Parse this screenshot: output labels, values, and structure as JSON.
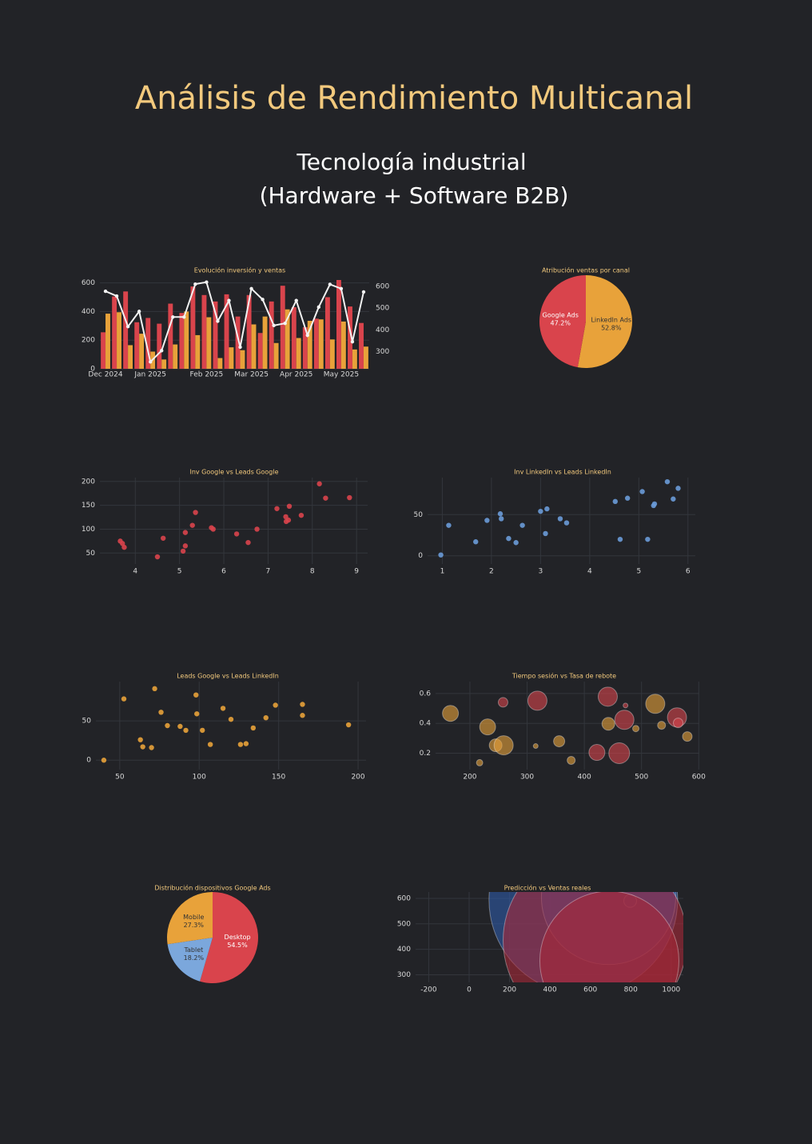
{
  "header": {
    "title": "Análisis de Rendimiento Multicanal",
    "subtitle": [
      "Tecnología industrial",
      "(Hardware + Software B2B)"
    ]
  },
  "chart_data": [
    {
      "type": "bar",
      "title": "Evolución inversión y ventas",
      "categories": [
        "Dec 2024",
        null,
        null,
        null,
        "Jan 2025",
        null,
        null,
        null,
        null,
        "Feb 2025",
        null,
        null,
        null,
        "Mar 2025",
        null,
        null,
        null,
        "Apr 2025",
        null,
        null,
        null,
        "May 2025",
        null,
        null
      ],
      "series": [
        {
          "color": "#d9444c",
          "values": [
            255,
            505,
            540,
            325,
            355,
            315,
            455,
            390,
            575,
            515,
            470,
            520,
            365,
            515,
            250,
            470,
            580,
            430,
            290,
            350,
            500,
            620,
            435,
            320
          ]
        },
        {
          "color": "#e8a23a",
          "values": [
            385,
            395,
            165,
            245,
            120,
            65,
            170,
            400,
            235,
            360,
            75,
            150,
            130,
            310,
            365,
            180,
            415,
            215,
            335,
            345,
            205,
            330,
            135,
            155
          ]
        },
        {
          "type": "line",
          "axis": "y2",
          "color": "#f2f2f2",
          "values": [
            578,
            556,
            415,
            485,
            252,
            304,
            459,
            459,
            611,
            620,
            440,
            535,
            320,
            590,
            540,
            420,
            430,
            535,
            375,
            505,
            610,
            590,
            345,
            575
          ]
        }
      ],
      "ylim": [
        0,
        620
      ],
      "yticks": [
        0,
        200,
        400,
        600
      ],
      "y2lim": [
        220,
        630
      ],
      "y2ticks": [
        300,
        400,
        500,
        600
      ],
      "grid": true
    },
    {
      "type": "pie",
      "title": "Atribución ventas por canal",
      "categories": [
        "LinkedIn Ads",
        "Google Ads"
      ],
      "values": [
        52.8,
        47.2
      ],
      "value_labels": [
        "52.8%",
        "47.2%"
      ],
      "colors": [
        "#e8a23a",
        "#d9444c"
      ],
      "label_colors": [
        "#333333",
        "#ffffff"
      ]
    },
    {
      "type": "scatter",
      "title": "Inv Google vs Leads Google",
      "color": "#d9444c",
      "x": [
        3.66,
        3.71,
        3.75,
        4.5,
        4.63,
        5.08,
        5.13,
        5.13,
        5.29,
        5.36,
        5.72,
        5.76,
        6.29,
        6.55,
        6.75,
        7.2,
        7.4,
        7.41,
        7.48,
        7.46,
        7.75,
        8.16,
        8.3,
        8.84
      ],
      "values": [
        75,
        70,
        62,
        42,
        81,
        54,
        65,
        93,
        108,
        135,
        103,
        100,
        90,
        72,
        100,
        143,
        126,
        116,
        148,
        119,
        129,
        195,
        165,
        166
      ],
      "xlim": [
        3.2,
        9.25
      ],
      "xticks": [
        4,
        5,
        6,
        7,
        8,
        9
      ],
      "ylim": [
        27,
        208
      ],
      "yticks": [
        50,
        100,
        150,
        200
      ],
      "grid": true
    },
    {
      "type": "scatter",
      "title": "Inv LinkedIn vs Leads LinkedIn",
      "color": "#6a9bd8",
      "x": [
        0.97,
        1.13,
        1.68,
        1.91,
        2.18,
        2.2,
        2.35,
        2.5,
        2.63,
        3.0,
        3.1,
        3.13,
        3.4,
        3.53,
        4.52,
        4.62,
        4.77,
        5.07,
        5.18,
        5.3,
        5.32,
        5.58,
        5.7,
        5.8
      ],
      "values": [
        1,
        37,
        17,
        43,
        51,
        45,
        21,
        16,
        37,
        54,
        27,
        57,
        45,
        40,
        66,
        20,
        70,
        78,
        20,
        61,
        63,
        90,
        69,
        82
      ],
      "xlim": [
        0.7,
        6.15
      ],
      "xticks": [
        1,
        2,
        3,
        4,
        5,
        6
      ],
      "ylim": [
        -10,
        95
      ],
      "yticks": [
        0,
        50
      ],
      "grid": true
    },
    {
      "type": "scatter",
      "title": "Leads Google vs Leads LinkedIn",
      "color": "#e8a23a",
      "x": [
        40,
        52.6,
        72,
        76,
        63,
        64.5,
        70,
        80,
        88,
        91.6,
        98,
        98.5,
        102,
        107,
        115,
        120,
        126,
        129.5,
        134,
        142,
        148,
        165,
        165,
        194
      ],
      "values": [
        0,
        78,
        91,
        61,
        26,
        17,
        16,
        44,
        43,
        38,
        83,
        59,
        38,
        20,
        66,
        52,
        20,
        21,
        41,
        54,
        70,
        71,
        57,
        45
      ],
      "xlim": [
        35,
        205
      ],
      "xticks": [
        50,
        100,
        150,
        200
      ],
      "ylim": [
        -12,
        100
      ],
      "yticks": [
        0,
        50
      ],
      "grid": true
    },
    {
      "type": "bubble",
      "title": "Tiempo sesión vs Tasa de rebote",
      "series": [
        {
          "color": "#e8a23a",
          "x": [
            166,
            231,
            245,
            259,
            217,
            315,
            356,
            377,
            442,
            490,
            524,
            535,
            580
          ],
          "values": [
            0.467,
            0.376,
            0.253,
            0.253,
            0.136,
            0.248,
            0.28,
            0.152,
            0.397,
            0.365,
            0.531,
            0.387,
            0.312
          ],
          "sizes": [
            10,
            10,
            8,
            12,
            4,
            3,
            7,
            5,
            8,
            4,
            12,
            5,
            6
          ]
        },
        {
          "color": "#d9444c",
          "x": [
            258,
            318,
            422,
            441,
            461,
            470,
            472,
            562,
            564
          ],
          "values": [
            0.541,
            0.552,
            0.205,
            0.579,
            0.2,
            0.424,
            0.52,
            0.44,
            0.403
          ],
          "sizes": [
            6,
            12,
            10,
            12,
            13,
            12,
            3,
            12,
            6
          ]
        }
      ],
      "xlim": [
        140,
        601
      ],
      "xticks": [
        200,
        300,
        400,
        500,
        600
      ],
      "ylim": [
        0.09,
        0.68
      ],
      "yticks": [
        0.2,
        0.4,
        0.6
      ],
      "grid": true
    },
    {
      "type": "pie",
      "title": "Distribución dispositivos Google Ads",
      "categories": [
        "Desktop",
        "Tablet",
        "Mobile"
      ],
      "values": [
        54.5,
        18.2,
        27.3
      ],
      "value_labels": [
        "54.5%",
        "18.2%",
        "27.3%"
      ],
      "colors": [
        "#d9444c",
        "#7ba7dc",
        "#e8a23a"
      ],
      "label_colors": [
        "#ffffff",
        "#333333",
        "#333333"
      ]
    },
    {
      "type": "bubble",
      "title": "Predicción vs Ventas reales",
      "series": [
        {
          "color": "#2f5aa8",
          "x": [
            565,
            690,
            797
          ],
          "values": [
            594,
            604,
            590
          ],
          "sizes": [
            118,
            84,
            8
          ]
        },
        {
          "color": "#a82838",
          "x": [
            623,
            694
          ],
          "values": [
            435,
            355
          ],
          "sizes": [
            115,
            87
          ]
        }
      ],
      "xlim": [
        -265,
        1060
      ],
      "xticks": [
        -200,
        0,
        200,
        400,
        600,
        800,
        1000
      ],
      "ylim": [
        270,
        625
      ],
      "yticks": [
        300,
        400,
        500,
        600
      ],
      "grid": true
    }
  ]
}
